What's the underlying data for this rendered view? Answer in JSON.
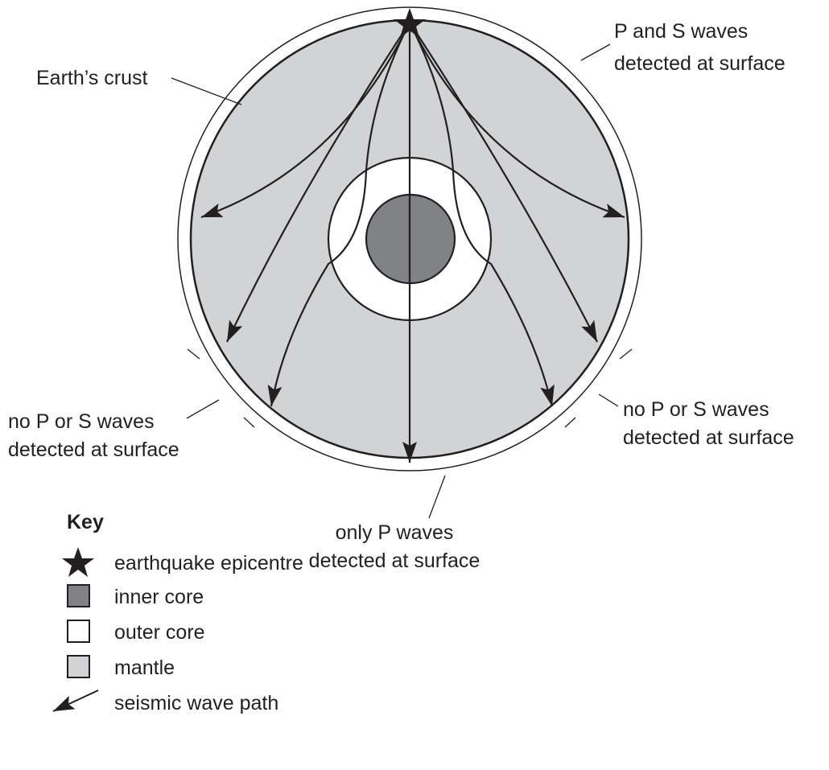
{
  "labels": {
    "crust": "Earth’s crust",
    "p_and_s": [
      "P and S waves",
      "detected at surface"
    ],
    "no_p_s_left": [
      "no P or S waves",
      "detected at surface"
    ],
    "no_p_s_right": [
      "no P or S waves",
      "detected at surface"
    ],
    "only_p": [
      "only P waves",
      "detected at surface"
    ]
  },
  "key": {
    "title": "Key",
    "items": [
      "earthquake epicentre",
      "inner core",
      "outer core",
      "mantle",
      "seismic wave path"
    ]
  }
}
